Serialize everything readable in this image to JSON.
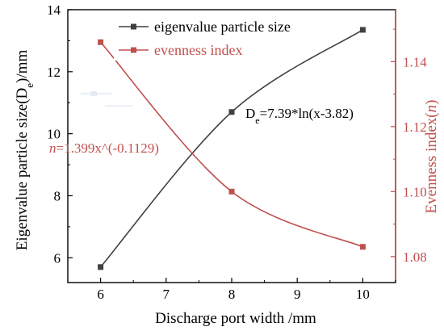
{
  "chart_data": {
    "type": "line",
    "title": "",
    "xlabel": "Discharge port width /mm",
    "ylabel": "Eigenvalue particle size(D",
    "ylabel_sub": "e",
    "ylabel_tail": ")/mm",
    "y2label": "Evenness index(",
    "y2label_italic": "n",
    "y2label_tail": ")",
    "xlim": [
      5.5,
      10.5
    ],
    "ylim": [
      5.2,
      14
    ],
    "y2lim": [
      1.072,
      1.156
    ],
    "xticks": [
      6,
      7,
      8,
      9,
      10
    ],
    "xtick_labels": [
      "6",
      "7",
      "8",
      "9",
      "10"
    ],
    "yticks": [
      6,
      8,
      10,
      12,
      14
    ],
    "ytick_labels": [
      "6",
      "8",
      "10",
      "12",
      "14"
    ],
    "y2ticks": [
      1.08,
      1.1,
      1.12,
      1.14
    ],
    "y2tick_labels": [
      "1.08",
      "1.10",
      "1.12",
      "1.14"
    ],
    "grid": false,
    "legend_position": "top-center",
    "series": [
      {
        "name": "eigenvalue particle size",
        "axis": "left",
        "color": "#404040",
        "marker": "square",
        "x": [
          6,
          8,
          10
        ],
        "y": [
          5.7,
          10.7,
          13.35
        ]
      },
      {
        "name": "evenness index",
        "axis": "right",
        "color": "#c0504d",
        "marker": "square",
        "x": [
          6,
          8,
          10
        ],
        "y": [
          1.146,
          1.1,
          1.083
        ]
      }
    ],
    "annotations": [
      {
        "id": "fit-size",
        "prefix": "D",
        "sub": "e",
        "body": "=7.39*ln(x-3.82)",
        "color": "#000000"
      },
      {
        "id": "fit-evenness",
        "prefix": "n",
        "body": "=1.399x^(-0.1129)",
        "color": "#c0504d"
      }
    ]
  }
}
